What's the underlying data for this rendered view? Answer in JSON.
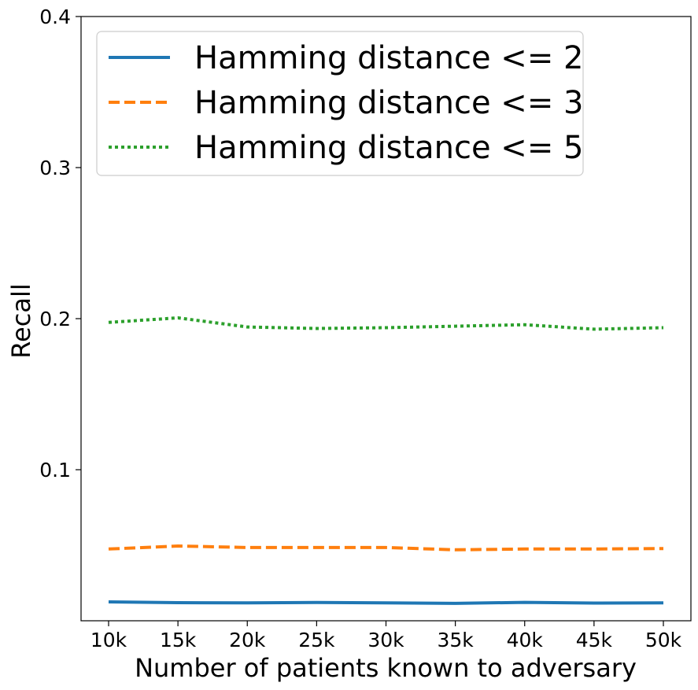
{
  "chart_data": {
    "type": "line",
    "title": "",
    "xlabel": "Number of patients known to adversary",
    "ylabel": "Recall",
    "categories": [
      "10k",
      "15k",
      "20k",
      "25k",
      "30k",
      "35k",
      "40k",
      "45k",
      "50k"
    ],
    "ylim": [
      0.0,
      0.4
    ],
    "yticks": [
      0.1,
      0.2,
      0.3,
      0.4
    ],
    "ytick_labels": [
      "0.1",
      "0.2",
      "0.3",
      "0.4"
    ],
    "grid": false,
    "legend_position": "upper-left",
    "series": [
      {
        "name": "Hamming distance <= 2",
        "color": "#1f77b4",
        "style": "solid",
        "values": [
          0.0125,
          0.012,
          0.0119,
          0.0121,
          0.0118,
          0.0115,
          0.0122,
          0.0117,
          0.0118
        ]
      },
      {
        "name": "Hamming distance <= 3",
        "color": "#ff7f0e",
        "style": "dashed",
        "values": [
          0.0475,
          0.0495,
          0.0485,
          0.0485,
          0.0485,
          0.047,
          0.0475,
          0.0475,
          0.0478
        ]
      },
      {
        "name": "Hamming distance <= 5",
        "color": "#2ca02c",
        "style": "dotted",
        "values": [
          0.1975,
          0.2005,
          0.1945,
          0.1935,
          0.194,
          0.195,
          0.196,
          0.193,
          0.194
        ]
      }
    ]
  }
}
